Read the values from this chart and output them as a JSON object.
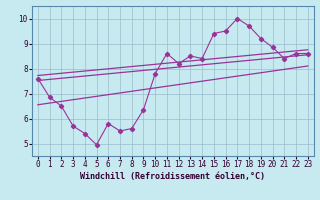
{
  "xlabel": "Windchill (Refroidissement éolien,°C)",
  "xlim": [
    -0.5,
    23.5
  ],
  "ylim": [
    4.5,
    10.5
  ],
  "xticks": [
    0,
    1,
    2,
    3,
    4,
    5,
    6,
    7,
    8,
    9,
    10,
    11,
    12,
    13,
    14,
    15,
    16,
    17,
    18,
    19,
    20,
    21,
    22,
    23
  ],
  "yticks": [
    5,
    6,
    7,
    8,
    9,
    10
  ],
  "bg_color": "#c6eaf0",
  "line_color": "#993399",
  "data_x": [
    0,
    1,
    2,
    3,
    4,
    5,
    6,
    7,
    8,
    9,
    10,
    11,
    12,
    13,
    14,
    15,
    16,
    17,
    18,
    19,
    20,
    21,
    22,
    23
  ],
  "data_y": [
    7.6,
    6.85,
    6.5,
    5.7,
    5.4,
    4.95,
    5.8,
    5.5,
    5.6,
    6.35,
    7.8,
    8.6,
    8.2,
    8.5,
    8.4,
    9.4,
    9.5,
    10.0,
    9.7,
    9.2,
    8.85,
    8.4,
    8.6,
    8.6
  ],
  "reg_line1_x": [
    0,
    23
  ],
  "reg_line1_y": [
    7.72,
    8.75
  ],
  "reg_line2_x": [
    0,
    23
  ],
  "reg_line2_y": [
    7.52,
    8.55
  ],
  "reg_line3_x": [
    0,
    23
  ],
  "reg_line3_y": [
    6.55,
    8.1
  ]
}
